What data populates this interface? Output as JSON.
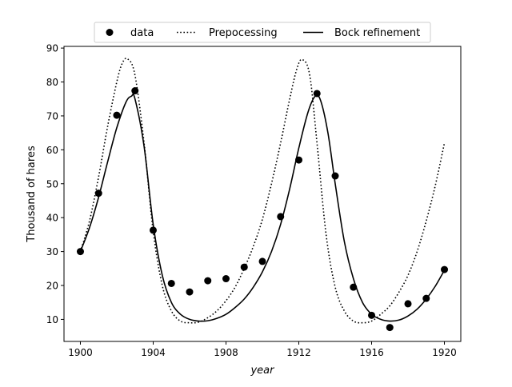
{
  "chart_data": {
    "type": "line",
    "title": "",
    "xlabel": "year",
    "ylabel": "Thousand of hares",
    "xlim": [
      1899.1,
      1920.9
    ],
    "ylim": [
      3.5,
      90.5
    ],
    "xticks": [
      1900,
      1904,
      1908,
      1912,
      1916,
      1920
    ],
    "yticks": [
      10,
      20,
      30,
      40,
      50,
      60,
      70,
      80,
      90
    ],
    "grid": false,
    "legend": {
      "placement": "top-center",
      "entries": [
        "data",
        "Prepocessing",
        "Bock refinement"
      ]
    },
    "series": [
      {
        "name": "data",
        "style": "markers",
        "color": "#000000",
        "x": [
          1900,
          1901,
          1902,
          1903,
          1904,
          1905,
          1906,
          1907,
          1908,
          1909,
          1910,
          1911,
          1912,
          1913,
          1914,
          1915,
          1916,
          1917,
          1918,
          1919,
          1920
        ],
        "y": [
          30,
          47.2,
          70.2,
          77.4,
          36.3,
          20.6,
          18.1,
          21.4,
          22,
          25.4,
          27.1,
          40.3,
          57,
          76.6,
          52.3,
          19.5,
          11.2,
          7.6,
          14.6,
          16.2,
          24.7
        ]
      },
      {
        "name": "Prepocessing",
        "style": "dotted",
        "color": "#000000",
        "x": [
          1900,
          1900.5,
          1901,
          1901.5,
          1902,
          1902.3,
          1902.6,
          1903,
          1903.5,
          1904,
          1904.5,
          1905,
          1905.5,
          1906,
          1906.5,
          1907,
          1907.5,
          1908,
          1908.5,
          1909,
          1909.5,
          1910,
          1910.5,
          1911,
          1911.5,
          1911.9,
          1912.2,
          1912.6,
          1913,
          1913.5,
          1914,
          1914.5,
          1915,
          1915.5,
          1916,
          1916.5,
          1917,
          1917.5,
          1918,
          1918.5,
          1919,
          1919.5,
          1920
        ],
        "y": [
          30,
          39,
          52,
          67,
          80,
          85.5,
          86.8,
          82,
          62,
          36,
          20,
          12.5,
          9.5,
          9,
          9.2,
          10.5,
          12.5,
          15.5,
          19.5,
          25,
          31.5,
          39.5,
          50,
          62,
          75,
          84,
          86.6,
          82,
          62,
          35,
          19.5,
          12.5,
          9.5,
          9,
          9.5,
          11.5,
          14,
          18,
          23,
          30,
          39,
          49.5,
          62
        ]
      },
      {
        "name": "Bock refinement",
        "style": "solid",
        "color": "#000000",
        "x": [
          1900,
          1900.5,
          1901,
          1901.5,
          1902,
          1902.5,
          1902.8,
          1903,
          1903.5,
          1904,
          1904.5,
          1905,
          1905.5,
          1906,
          1906.5,
          1907,
          1907.5,
          1908,
          1908.5,
          1909,
          1909.5,
          1910,
          1910.5,
          1911,
          1911.5,
          1912,
          1912.5,
          1912.9,
          1913.2,
          1913.6,
          1914,
          1914.5,
          1915,
          1915.5,
          1916,
          1916.5,
          1917,
          1917.5,
          1918,
          1918.5,
          1919,
          1919.5,
          1920
        ],
        "y": [
          30,
          37,
          46,
          56.5,
          66.5,
          74,
          75.8,
          75,
          61,
          38,
          23,
          15,
          11.5,
          10,
          9.5,
          9.6,
          10.3,
          11.5,
          13.5,
          16,
          19.5,
          24,
          30,
          38,
          48.5,
          60.5,
          71,
          75.8,
          74.5,
          65,
          50,
          33,
          22,
          15,
          11.5,
          10,
          9.5,
          9.8,
          11,
          13,
          16,
          19.8,
          24.5
        ]
      }
    ]
  }
}
